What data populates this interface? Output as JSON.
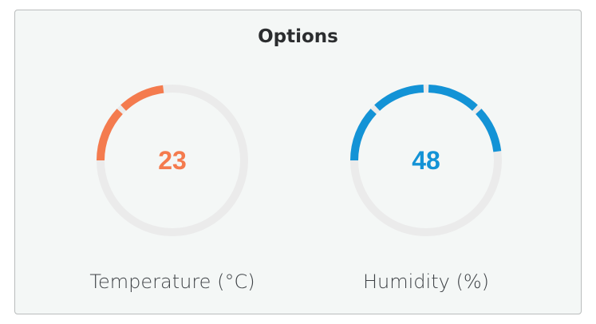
{
  "panel": {
    "title": "Options"
  },
  "gauges": [
    {
      "id": "temperature",
      "label": "Temperature (°C)",
      "value": "23",
      "fill_fraction": 0.23,
      "color": "#f47b4e",
      "track_color": "#ebebeb"
    },
    {
      "id": "humidity",
      "label": "Humidity (%)",
      "value": "48",
      "fill_fraction": 0.48,
      "color": "#1393d6",
      "track_color": "#ebebeb"
    }
  ]
}
